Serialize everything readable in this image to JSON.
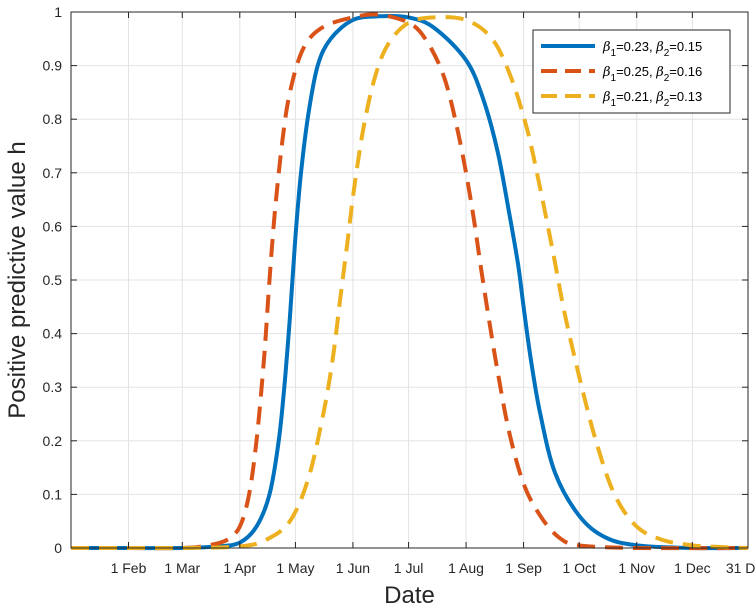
{
  "chart_data": {
    "type": "line",
    "xlabel": "Date",
    "ylabel": "Positive predictive value h",
    "x_ticks": [
      {
        "date": "2020-02-01",
        "label": "1 Feb"
      },
      {
        "date": "2020-03-01",
        "label": "1 Mar"
      },
      {
        "date": "2020-04-01",
        "label": "1 Apr"
      },
      {
        "date": "2020-05-01",
        "label": "1 May"
      },
      {
        "date": "2020-06-01",
        "label": "1 Jun"
      },
      {
        "date": "2020-07-01",
        "label": "1 Jul"
      },
      {
        "date": "2020-08-01",
        "label": "1 Aug"
      },
      {
        "date": "2020-09-01",
        "label": "1 Sep"
      },
      {
        "date": "2020-10-01",
        "label": "1 Oct"
      },
      {
        "date": "2020-11-01",
        "label": "1 Nov"
      },
      {
        "date": "2020-12-01",
        "label": "1 Dec"
      },
      {
        "date": "2020-12-31",
        "label": "31 Dec"
      }
    ],
    "xlim": [
      "2020-01-01",
      "2020-12-31"
    ],
    "ylim": [
      0,
      1
    ],
    "y_ticks": [
      0,
      0.1,
      0.2,
      0.3,
      0.4,
      0.5,
      0.6,
      0.7,
      0.8,
      0.9,
      1
    ],
    "y_tick_labels": [
      "0",
      "0.1",
      "0.2",
      "0.3",
      "0.4",
      "0.5",
      "0.6",
      "0.7",
      "0.8",
      "0.9",
      "1"
    ],
    "grid": true,
    "legend_position": "top-right",
    "series": [
      {
        "name": "β1=0.23, β2=0.15",
        "legend": {
          "b1_sym": "β",
          "b1_sub": "1",
          "b1_val": "=0.23, ",
          "b2_sym": "β",
          "b2_sub": "2",
          "b2_val": "=0.15"
        },
        "color": "#0072BD",
        "style": "solid",
        "x": [
          "2020-01-01",
          "2020-02-01",
          "2020-03-01",
          "2020-03-20",
          "2020-04-01",
          "2020-04-10",
          "2020-04-17",
          "2020-04-22",
          "2020-04-25",
          "2020-04-28",
          "2020-05-01",
          "2020-05-04",
          "2020-05-08",
          "2020-05-13",
          "2020-05-20",
          "2020-06-01",
          "2020-06-15",
          "2020-07-01",
          "2020-07-15",
          "2020-08-01",
          "2020-08-10",
          "2020-08-18",
          "2020-08-24",
          "2020-08-29",
          "2020-09-01",
          "2020-09-05",
          "2020-09-10",
          "2020-09-18",
          "2020-10-01",
          "2020-10-15",
          "2020-11-01",
          "2020-12-01",
          "2020-12-31"
        ],
        "y": [
          0,
          0,
          0,
          0.003,
          0.01,
          0.04,
          0.1,
          0.2,
          0.3,
          0.43,
          0.58,
          0.7,
          0.81,
          0.9,
          0.95,
          0.985,
          0.992,
          0.99,
          0.97,
          0.91,
          0.84,
          0.74,
          0.63,
          0.53,
          0.45,
          0.35,
          0.25,
          0.14,
          0.06,
          0.02,
          0.005,
          0,
          0
        ]
      },
      {
        "name": "β1=0.25, β2=0.16",
        "legend": {
          "b1_sym": "β",
          "b1_sub": "1",
          "b1_val": "=0.25, ",
          "b2_sym": "β",
          "b2_sub": "2",
          "b2_val": "=0.16"
        },
        "color": "#D95319",
        "style": "dashed",
        "x": [
          "2020-01-01",
          "2020-02-01",
          "2020-03-01",
          "2020-03-15",
          "2020-03-25",
          "2020-04-01",
          "2020-04-06",
          "2020-04-10",
          "2020-04-14",
          "2020-04-17",
          "2020-04-20",
          "2020-04-24",
          "2020-04-28",
          "2020-05-05",
          "2020-05-15",
          "2020-06-01",
          "2020-06-15",
          "2020-07-01",
          "2020-07-10",
          "2020-07-20",
          "2020-07-28",
          "2020-08-04",
          "2020-08-10",
          "2020-08-17",
          "2020-08-24",
          "2020-09-01",
          "2020-09-10",
          "2020-09-20",
          "2020-10-01",
          "2020-11-01",
          "2020-12-31"
        ],
        "y": [
          0,
          0,
          0,
          0.005,
          0.015,
          0.04,
          0.1,
          0.2,
          0.35,
          0.5,
          0.63,
          0.76,
          0.85,
          0.93,
          0.97,
          0.99,
          0.995,
          0.98,
          0.95,
          0.88,
          0.77,
          0.64,
          0.5,
          0.35,
          0.22,
          0.12,
          0.06,
          0.02,
          0.005,
          0,
          0
        ]
      },
      {
        "name": "β1=0.21, β2=0.13",
        "legend": {
          "b1_sym": "β",
          "b1_sub": "1",
          "b1_val": "=0.21, ",
          "b2_sym": "β",
          "b2_sub": "2",
          "b2_val": "=0.13"
        },
        "color": "#EDB120",
        "style": "dashed",
        "x": [
          "2020-01-01",
          "2020-02-01",
          "2020-03-01",
          "2020-04-01",
          "2020-04-15",
          "2020-04-28",
          "2020-05-08",
          "2020-05-16",
          "2020-05-21",
          "2020-05-25",
          "2020-05-29",
          "2020-06-02",
          "2020-06-07",
          "2020-06-13",
          "2020-06-20",
          "2020-07-01",
          "2020-07-15",
          "2020-08-01",
          "2020-08-15",
          "2020-08-25",
          "2020-09-03",
          "2020-09-10",
          "2020-09-17",
          "2020-09-23",
          "2020-10-01",
          "2020-10-10",
          "2020-10-20",
          "2020-11-01",
          "2020-11-15",
          "2020-12-01",
          "2020-12-15",
          "2020-12-31"
        ],
        "y": [
          0,
          0,
          0,
          0.003,
          0.015,
          0.05,
          0.13,
          0.25,
          0.35,
          0.46,
          0.57,
          0.68,
          0.79,
          0.88,
          0.94,
          0.98,
          0.99,
          0.985,
          0.95,
          0.88,
          0.78,
          0.67,
          0.55,
          0.44,
          0.32,
          0.2,
          0.1,
          0.04,
          0.015,
          0.005,
          0.002,
          0
        ]
      }
    ]
  }
}
